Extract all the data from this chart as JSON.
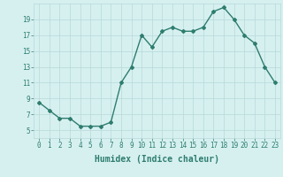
{
  "x": [
    0,
    1,
    2,
    3,
    4,
    5,
    6,
    7,
    8,
    9,
    10,
    11,
    12,
    13,
    14,
    15,
    16,
    17,
    18,
    19,
    20,
    21,
    22,
    23
  ],
  "y": [
    8.5,
    7.5,
    6.5,
    6.5,
    5.5,
    5.5,
    5.5,
    6.0,
    11.0,
    13.0,
    17.0,
    15.5,
    17.5,
    18.0,
    17.5,
    17.5,
    18.0,
    20.0,
    20.5,
    19.0,
    17.0,
    16.0,
    13.0,
    11.0
  ],
  "line_color": "#2e7d6e",
  "marker": "D",
  "marker_size": 2,
  "bg_color": "#d6f0f0",
  "grid_color": "#b8d8d8",
  "xlabel": "Humidex (Indice chaleur)",
  "xlabel_fontsize": 7,
  "xlim": [
    -0.5,
    23.5
  ],
  "ylim": [
    4,
    21
  ],
  "yticks": [
    5,
    7,
    9,
    11,
    13,
    15,
    17,
    19
  ],
  "xticks": [
    0,
    1,
    2,
    3,
    4,
    5,
    6,
    7,
    8,
    9,
    10,
    11,
    12,
    13,
    14,
    15,
    16,
    17,
    18,
    19,
    20,
    21,
    22,
    23
  ],
  "tick_fontsize": 5.5,
  "linewidth": 1.0
}
